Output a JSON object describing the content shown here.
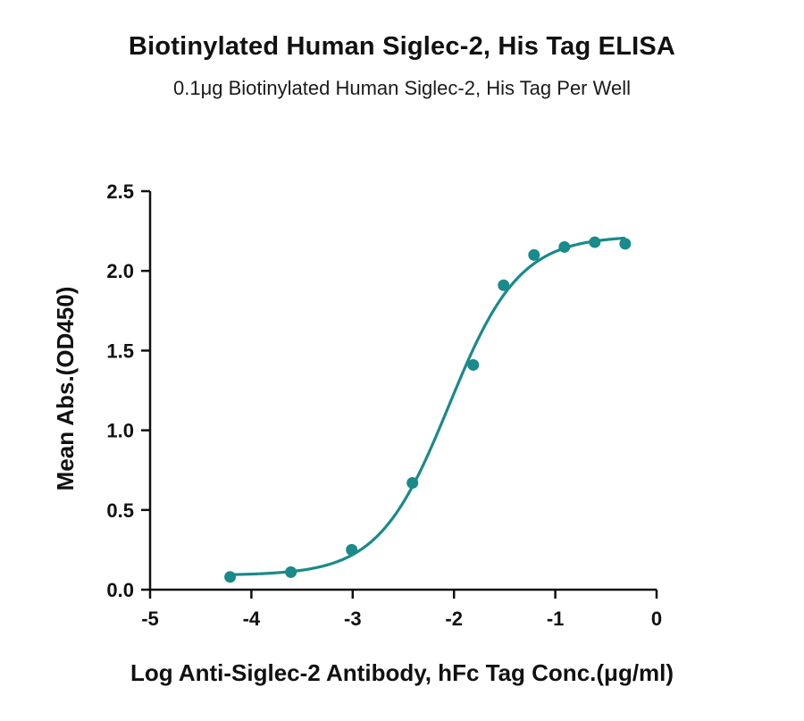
{
  "chart_data": {
    "type": "scatter",
    "title": "Biotinylated Human Siglec-2, His Tag ELISA",
    "subtitle": "0.1μg Biotinylated Human Siglec-2, His Tag Per Well",
    "xlabel": "Log  Anti-Siglec-2 Antibody, hFc Tag Conc.(μg/ml)",
    "ylabel": "Mean Abs.(OD450)",
    "xlim": [
      -5,
      0
    ],
    "ylim": [
      0,
      2.5
    ],
    "xticks": [
      "-5",
      "-4",
      "-3",
      "-2",
      "-1",
      "0"
    ],
    "yticks": [
      "0.0",
      "0.5",
      "1.0",
      "1.5",
      "2.0",
      "2.5"
    ],
    "color": "#1a8a8a",
    "grid": false,
    "series": [
      {
        "x": [
          -4.21,
          -3.61,
          -3.01,
          -2.41,
          -1.81,
          -1.51,
          -1.21,
          -0.91,
          -0.61,
          -0.31
        ],
        "y": [
          0.08,
          0.11,
          0.25,
          0.67,
          1.41,
          1.91,
          2.1,
          2.15,
          2.18,
          2.17
        ]
      }
    ],
    "fit_curve": {
      "model": "4PL",
      "bottom": 0.09,
      "top": 2.22,
      "log_ec50": -2.05,
      "hill_slope": 1.25,
      "x_range": [
        -4.21,
        -0.31
      ]
    }
  }
}
